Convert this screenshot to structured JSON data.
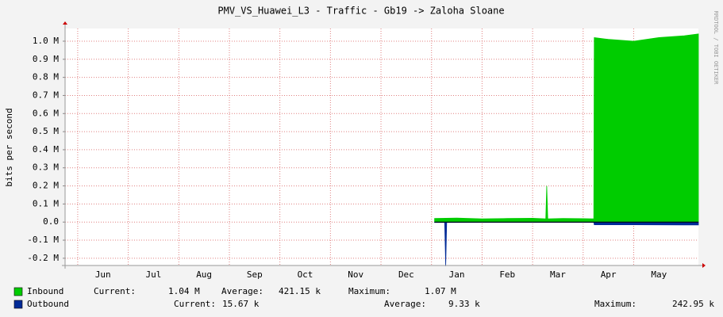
{
  "chart_data": {
    "type": "area",
    "title": "PMV_VS_Huawei_L3 - Traffic - Gb19 -> Zaloha Sloane",
    "y_label": "bits per second",
    "side_text": "RRDTOOL / TOBI OETIKER",
    "categories": [
      "Jun",
      "Jul",
      "Aug",
      "Sep",
      "Oct",
      "Nov",
      "Dec",
      "Jan",
      "Feb",
      "Mar",
      "Apr",
      "May"
    ],
    "xlim": [
      -0.25,
      12.28
    ],
    "ylim": [
      -240000,
      1070000
    ],
    "yticks": [
      {
        "value": 1000000,
        "label": "1.0 M"
      },
      {
        "value": 900000,
        "label": "0.9 M"
      },
      {
        "value": 800000,
        "label": "0.8 M"
      },
      {
        "value": 700000,
        "label": "0.7 M"
      },
      {
        "value": 600000,
        "label": "0.6 M"
      },
      {
        "value": 500000,
        "label": "0.5 M"
      },
      {
        "value": 400000,
        "label": "0.4 M"
      },
      {
        "value": 300000,
        "label": "0.3 M"
      },
      {
        "value": 200000,
        "label": "0.2 M"
      },
      {
        "value": 100000,
        "label": "0.1 M"
      },
      {
        "value": 0,
        "label": "0.0"
      },
      {
        "value": -100000,
        "label": "-0.1 M"
      },
      {
        "value": -200000,
        "label": "-0.2 M"
      }
    ],
    "grid": true,
    "series": [
      {
        "name": "Inbound",
        "color": "#00cc00",
        "inverted": false,
        "x": [
          7.06,
          7.5,
          8,
          8.5,
          9,
          9.26,
          9.28,
          9.3,
          9.6,
          10.0,
          10.21,
          10.22,
          10.5,
          11,
          11.5,
          12,
          12.28
        ],
        "values": [
          20000,
          22000,
          18000,
          20000,
          21000,
          18000,
          200000,
          18000,
          20000,
          19000,
          18000,
          1020000,
          1010000,
          1000000,
          1020000,
          1030000,
          1040000
        ],
        "stats": [
          {
            "label": "Current:",
            "value": "1.04 M"
          },
          {
            "label": "Average:",
            "value": "421.15 k"
          },
          {
            "label": "Maximum:",
            "value": "1.07 M"
          }
        ]
      },
      {
        "name": "Outbound",
        "color": "#002a97",
        "inverted": true,
        "x": [
          7.06,
          7.26,
          7.28,
          7.3,
          8,
          9,
          10.21,
          10.22,
          11,
          12,
          12.28
        ],
        "values": [
          2000,
          2000,
          242950,
          2000,
          1500,
          1500,
          1500,
          15000,
          15000,
          16000,
          15670
        ],
        "stats": [
          {
            "label": "Current:",
            "value": "15.67 k"
          },
          {
            "label": "Average:",
            "value": "9.33 k"
          },
          {
            "label": "Maximum:",
            "value": "242.95 k"
          }
        ]
      }
    ]
  }
}
